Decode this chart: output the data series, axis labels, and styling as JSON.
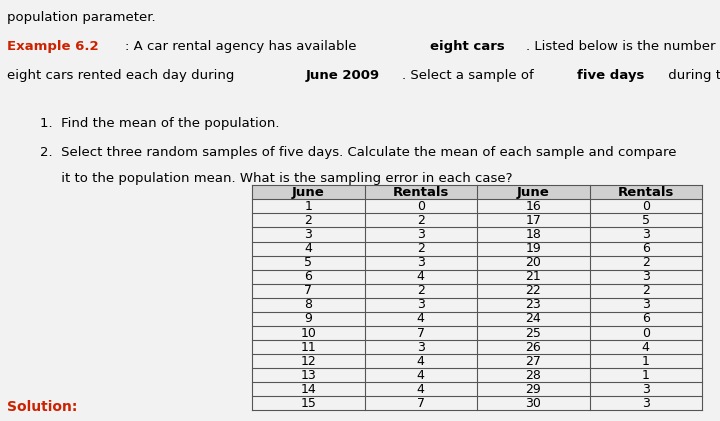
{
  "title_line1": "population parameter.",
  "example_label": "Example 6.2",
  "example_text1": ": A car rental agency has available ",
  "example_bold1": "eight cars",
  "example_text2": ". Listed below is the number of these",
  "example_text3": "eight cars rented each day during ",
  "example_bold2": "June 2009",
  "example_text4": ". Select a sample of ",
  "example_bold3": "five days",
  "example_text5": " during the month, and:",
  "item1": "1.  Find the mean of the population.",
  "item2_line1": "2.  Select three random samples of five days. Calculate the mean of each sample and compare",
  "item2_line2": "     it to the population mean. What is the sampling error in each case?",
  "col_headers": [
    "June",
    "Rentals",
    "June",
    "Rentals"
  ],
  "june_left": [
    1,
    2,
    3,
    4,
    5,
    6,
    7,
    8,
    9,
    10,
    11,
    12,
    13,
    14,
    15
  ],
  "rent_left": [
    0,
    2,
    3,
    2,
    3,
    4,
    2,
    3,
    4,
    7,
    3,
    4,
    4,
    4,
    7
  ],
  "june_right": [
    16,
    17,
    18,
    19,
    20,
    21,
    22,
    23,
    24,
    25,
    26,
    27,
    28,
    29,
    30
  ],
  "rent_right": [
    0,
    5,
    3,
    6,
    2,
    3,
    2,
    3,
    6,
    0,
    4,
    1,
    1,
    3,
    3
  ],
  "solution_label": "Solution:",
  "bg_color": "#f2f2f2",
  "table_header_bg": "#d0d0d0",
  "text_color": "#000000",
  "example_color": "#cc2200",
  "solution_color": "#cc2200",
  "font_size_body": 9.5,
  "font_size_table": 9.0
}
